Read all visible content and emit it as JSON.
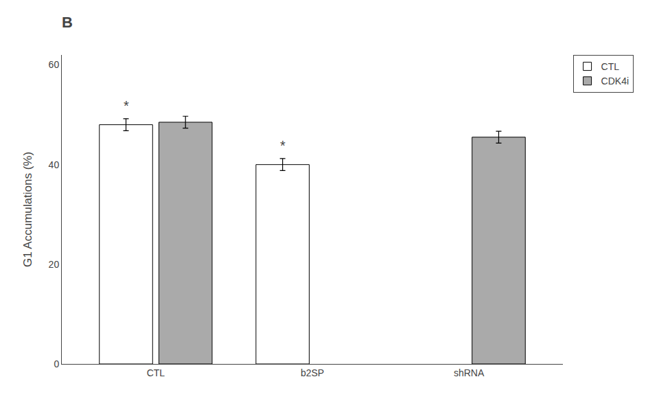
{
  "chart_data": {
    "type": "bar",
    "title": "B",
    "categories": [
      "CTL",
      "b2SP",
      "shRNA"
    ],
    "series": [
      {
        "name": "CTL",
        "color": "white",
        "values": [
          48.0,
          40.0,
          null
        ],
        "errors": [
          1.2,
          1.2,
          null
        ]
      },
      {
        "name": "CDK4i",
        "color": "#aaaaaa",
        "values": [
          48.5,
          null,
          45.5
        ],
        "errors": [
          1.2,
          null,
          1.2
        ]
      }
    ],
    "ylabel": "G1 Accumulations (%)",
    "ylim": [
      0,
      62
    ],
    "yticks": [
      0,
      20,
      40,
      60
    ],
    "grid": false,
    "legend": "upper right",
    "annotations": [
      {
        "text": "*",
        "category": "CTL",
        "series": "CTL",
        "y": 50.0
      },
      {
        "text": "*",
        "category": "b2SP",
        "series": "CTL",
        "y": 42.0
      }
    ]
  }
}
